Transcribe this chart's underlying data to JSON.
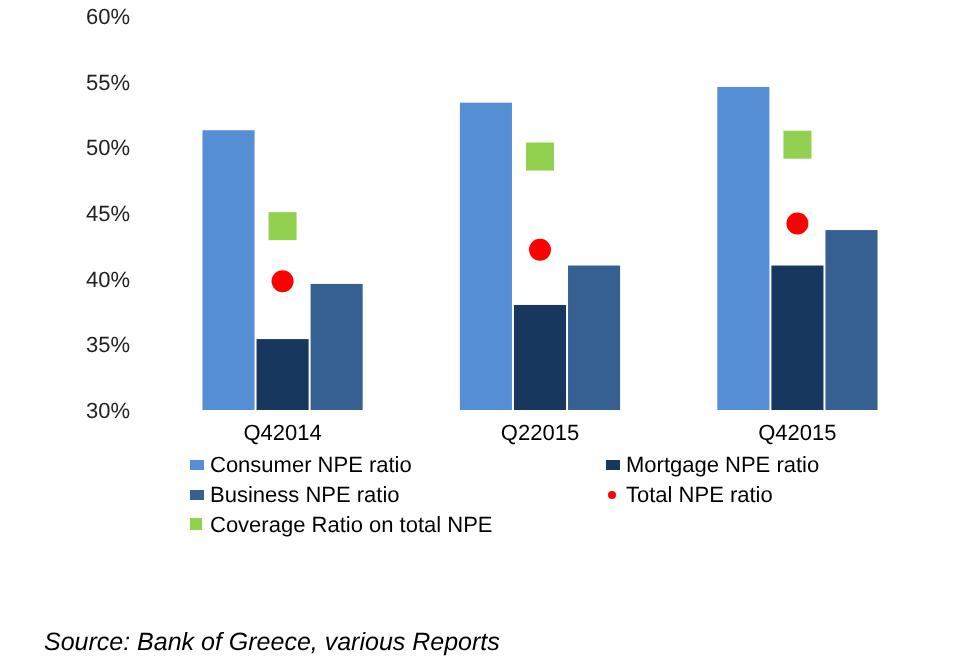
{
  "chart_data": {
    "type": "bar",
    "categories": [
      "Q42014",
      "Q22015",
      "Q42015"
    ],
    "series": [
      {
        "name": "Consumer NPE ratio",
        "color": "#558ed5",
        "values": [
          51.3,
          53.4,
          54.6
        ]
      },
      {
        "name": "Mortgage NPE ratio",
        "color": "#17375e",
        "values": [
          35.4,
          38.0,
          41.0
        ]
      },
      {
        "name": "Business NPE ratio",
        "color": "#366092",
        "values": [
          39.6,
          41.0,
          43.7
        ]
      },
      {
        "name": "Total NPE ratio",
        "type": "scatter",
        "marker": "circle",
        "color": "#ff0000",
        "values": [
          39.8,
          42.2,
          44.2
        ]
      },
      {
        "name": "Coverage Ratio on total NPE",
        "type": "scatter",
        "marker": "square",
        "color": "#92d050",
        "values": [
          44.0,
          49.3,
          50.2
        ]
      }
    ],
    "ylim": [
      30,
      60
    ],
    "yticks": [
      {
        "value": 30,
        "label": "30%"
      },
      {
        "value": 35,
        "label": "35%"
      },
      {
        "value": 40,
        "label": "40%"
      },
      {
        "value": 45,
        "label": "45%"
      },
      {
        "value": 50,
        "label": "50%"
      },
      {
        "value": 55,
        "label": "55%"
      },
      {
        "value": 60,
        "label": "60%"
      }
    ],
    "grid": false,
    "legend": "bottom",
    "annotations": [
      "Source: Bank of Greece, various Reports"
    ]
  }
}
